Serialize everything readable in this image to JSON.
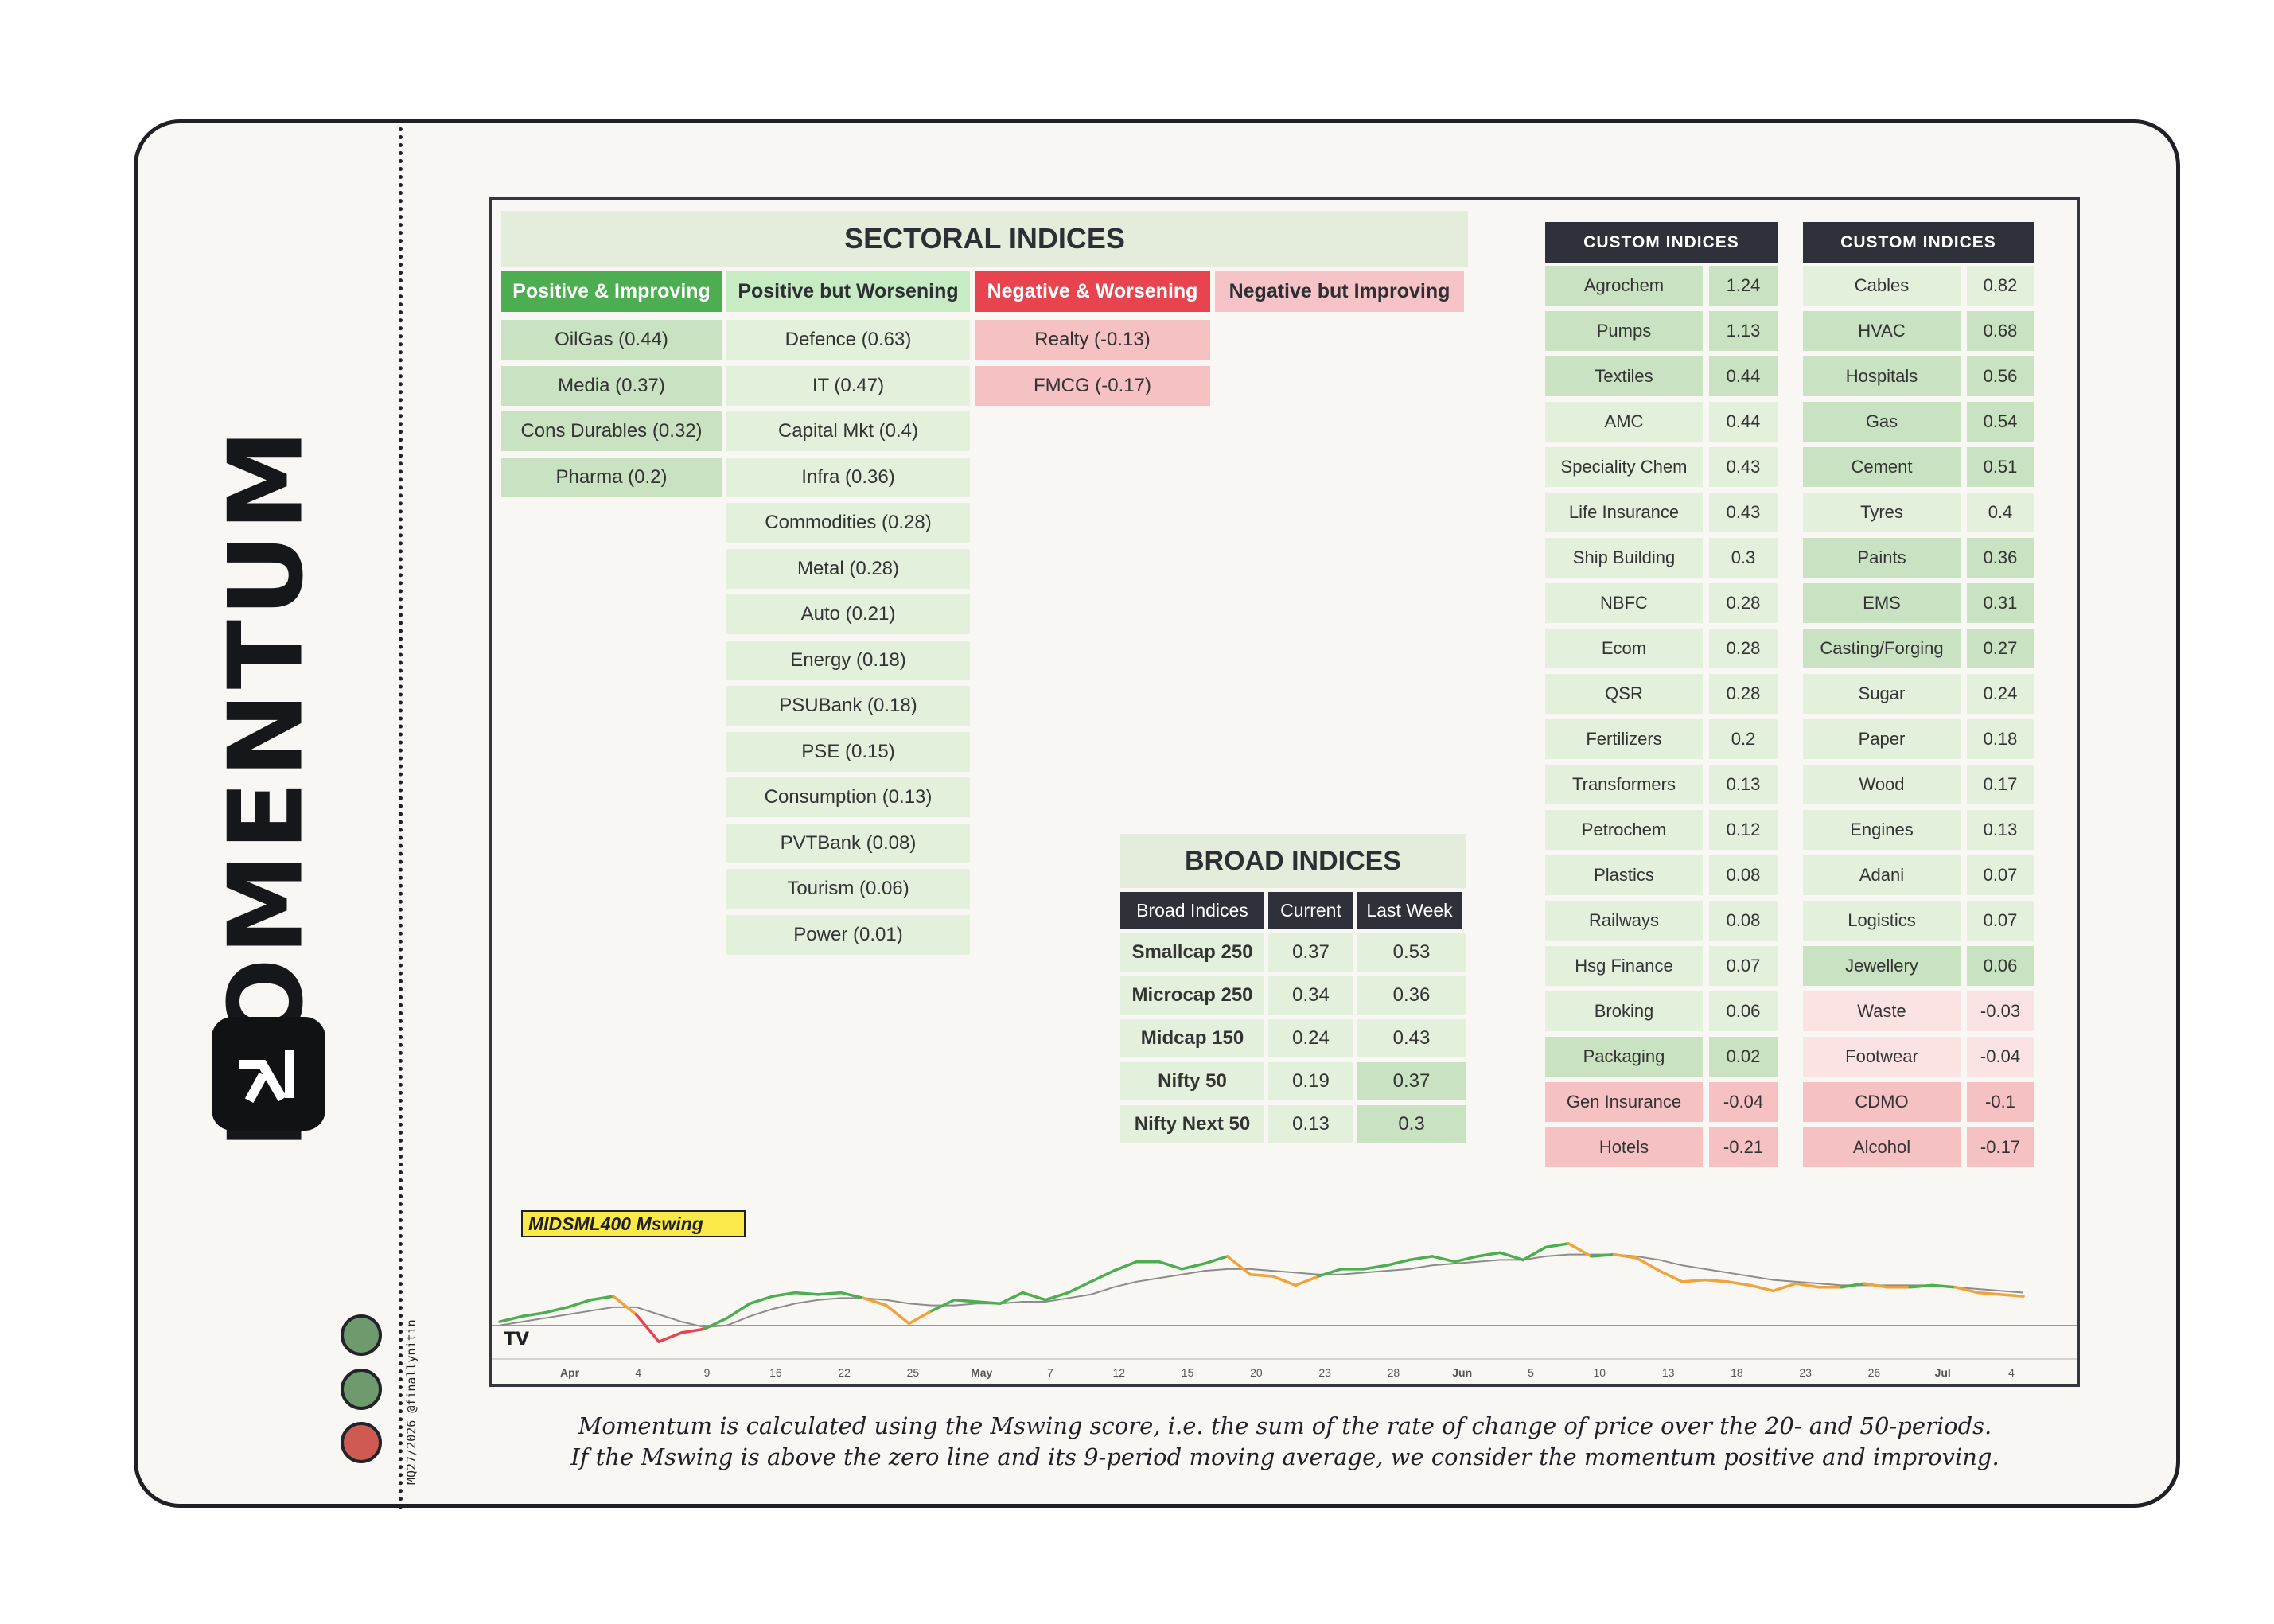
{
  "brand": {
    "title": "MOMENTUM",
    "handle": "MQ27/2026 @finallynitin"
  },
  "status_dots": [
    "#6e9a6e",
    "#6e9a6e",
    "#cf5a52"
  ],
  "colors": {
    "g1": "#c9e3c2",
    "g2": "#e3f0dc",
    "r1": "#f5c1c3",
    "r2": "#fbe3e3"
  },
  "sectoral": {
    "title": "SECTORAL INDICES",
    "columns": [
      {
        "label": "Positive & Improving",
        "head_bg": "#4cae50",
        "head_fg": "#ffffff",
        "cell_bg": "#c9e3c2",
        "items": [
          "OilGas (0.44)",
          "Media (0.37)",
          "Cons Durables (0.32)",
          "Pharma (0.2)"
        ]
      },
      {
        "label": "Positive but Worsening",
        "head_bg": "#c7ecc4",
        "head_fg": "#2d2f35",
        "cell_bg": "#e3f0dc",
        "items": [
          "Defence (0.63)",
          "IT (0.47)",
          "Capital Mkt (0.4)",
          "Infra (0.36)",
          "Commodities (0.28)",
          "Metal (0.28)",
          "Auto (0.21)",
          "Energy (0.18)",
          "PSUBank (0.18)",
          "PSE (0.15)",
          "Consumption (0.13)",
          "PVTBank (0.08)",
          "Tourism (0.06)",
          "Power (0.01)"
        ]
      },
      {
        "label": "Negative & Worsening",
        "head_bg": "#e8444f",
        "head_fg": "#ffffff",
        "cell_bg": "#f5c1c3",
        "items": [
          "Realty (-0.13)",
          "FMCG (-0.17)"
        ]
      },
      {
        "label": "Negative but Improving",
        "head_bg": "#f6c4c6",
        "head_fg": "#2d2f35",
        "cell_bg": "#fbe3e3",
        "items": []
      }
    ]
  },
  "custom_indices": [
    {
      "title": "CUSTOM INDICES",
      "rows": [
        {
          "name": "Agrochem",
          "value": "1.24",
          "tone": "g1"
        },
        {
          "name": "Pumps",
          "value": "1.13",
          "tone": "g1"
        },
        {
          "name": "Textiles",
          "value": "0.44",
          "tone": "g1"
        },
        {
          "name": "AMC",
          "value": "0.44",
          "tone": "g2"
        },
        {
          "name": "Speciality Chem",
          "value": "0.43",
          "tone": "g2"
        },
        {
          "name": "Life Insurance",
          "value": "0.43",
          "tone": "g2"
        },
        {
          "name": "Ship Building",
          "value": "0.3",
          "tone": "g2"
        },
        {
          "name": "NBFC",
          "value": "0.28",
          "tone": "g2"
        },
        {
          "name": "Ecom",
          "value": "0.28",
          "tone": "g2"
        },
        {
          "name": "QSR",
          "value": "0.28",
          "tone": "g2"
        },
        {
          "name": "Fertilizers",
          "value": "0.2",
          "tone": "g2"
        },
        {
          "name": "Transformers",
          "value": "0.13",
          "tone": "g2"
        },
        {
          "name": "Petrochem",
          "value": "0.12",
          "tone": "g2"
        },
        {
          "name": "Plastics",
          "value": "0.08",
          "tone": "g2"
        },
        {
          "name": "Railways",
          "value": "0.08",
          "tone": "g2"
        },
        {
          "name": "Hsg Finance",
          "value": "0.07",
          "tone": "g2"
        },
        {
          "name": "Broking",
          "value": "0.06",
          "tone": "g2"
        },
        {
          "name": "Packaging",
          "value": "0.02",
          "tone": "g1"
        },
        {
          "name": "Gen Insurance",
          "value": "-0.04",
          "tone": "r1"
        },
        {
          "name": "Hotels",
          "value": "-0.21",
          "tone": "r1"
        }
      ]
    },
    {
      "title": "CUSTOM INDICES",
      "rows": [
        {
          "name": "Cables",
          "value": "0.82",
          "tone": "g2"
        },
        {
          "name": "HVAC",
          "value": "0.68",
          "tone": "g1"
        },
        {
          "name": "Hospitals",
          "value": "0.56",
          "tone": "g1"
        },
        {
          "name": "Gas",
          "value": "0.54",
          "tone": "g1"
        },
        {
          "name": "Cement",
          "value": "0.51",
          "tone": "g1"
        },
        {
          "name": "Tyres",
          "value": "0.4",
          "tone": "g2"
        },
        {
          "name": "Paints",
          "value": "0.36",
          "tone": "g1"
        },
        {
          "name": "EMS",
          "value": "0.31",
          "tone": "g1"
        },
        {
          "name": "Casting/Forging",
          "value": "0.27",
          "tone": "g1"
        },
        {
          "name": "Sugar",
          "value": "0.24",
          "tone": "g2"
        },
        {
          "name": "Paper",
          "value": "0.18",
          "tone": "g2"
        },
        {
          "name": "Wood",
          "value": "0.17",
          "tone": "g2"
        },
        {
          "name": "Engines",
          "value": "0.13",
          "tone": "g2"
        },
        {
          "name": "Adani",
          "value": "0.07",
          "tone": "g2"
        },
        {
          "name": "Logistics",
          "value": "0.07",
          "tone": "g2"
        },
        {
          "name": "Jewellery",
          "value": "0.06",
          "tone": "g1"
        },
        {
          "name": "Waste",
          "value": "-0.03",
          "tone": "r2"
        },
        {
          "name": "Footwear",
          "value": "-0.04",
          "tone": "r2"
        },
        {
          "name": "CDMO",
          "value": "-0.1",
          "tone": "r1"
        },
        {
          "name": "Alcohol",
          "value": "-0.17",
          "tone": "r1"
        }
      ]
    }
  ],
  "broad": {
    "title": "BROAD INDICES",
    "headers": [
      "Broad Indices",
      "Current",
      "Last Week"
    ],
    "rows": [
      {
        "name": "Smallcap 250",
        "current": "0.37",
        "last_week": "0.53",
        "tone": "g2"
      },
      {
        "name": "Microcap 250",
        "current": "0.34",
        "last_week": "0.36",
        "tone": "g2"
      },
      {
        "name": "Midcap 150",
        "current": "0.24",
        "last_week": "0.43",
        "tone": "g2"
      },
      {
        "name": "Nifty 50",
        "current": "0.19",
        "last_week": "0.37",
        "tone": "g1"
      },
      {
        "name": "Nifty Next 50",
        "current": "0.13",
        "last_week": "0.3",
        "tone": "g1"
      }
    ]
  },
  "chart_data": {
    "type": "line",
    "title": "MIDSML400 Mswing",
    "xlabel": "",
    "ylabel": "",
    "x_ticks": [
      "Apr",
      "4",
      "9",
      "16",
      "22",
      "25",
      "May",
      "7",
      "12",
      "15",
      "20",
      "23",
      "28",
      "Jun",
      "5",
      "10",
      "13",
      "18",
      "23",
      "26",
      "Jul",
      "4"
    ],
    "ylim": [
      -0.15,
      0.55
    ],
    "series": [
      {
        "name": "Mswing",
        "colors": {
          "positive_improving": "#4cae50",
          "positive_worsening": "#f2a23a",
          "negative": "#e8444f"
        },
        "values": [
          0.02,
          0.05,
          0.07,
          0.1,
          0.14,
          0.16,
          0.06,
          -0.09,
          -0.04,
          -0.02,
          0.04,
          0.12,
          0.16,
          0.18,
          0.17,
          0.18,
          0.15,
          0.11,
          0.01,
          0.08,
          0.14,
          0.13,
          0.12,
          0.18,
          0.14,
          0.18,
          0.24,
          0.3,
          0.35,
          0.35,
          0.31,
          0.34,
          0.38,
          0.28,
          0.27,
          0.22,
          0.27,
          0.31,
          0.31,
          0.33,
          0.36,
          0.38,
          0.35,
          0.38,
          0.4,
          0.36,
          0.43,
          0.45,
          0.38,
          0.39,
          0.37,
          0.3,
          0.24,
          0.25,
          0.24,
          0.22,
          0.19,
          0.23,
          0.21,
          0.21,
          0.23,
          0.21,
          0.21,
          0.22,
          0.21,
          0.18,
          0.17,
          0.16
        ]
      },
      {
        "name": "9-period MA",
        "color": "#8c8c8c",
        "values": [
          0.0,
          0.02,
          0.04,
          0.06,
          0.08,
          0.1,
          0.1,
          0.06,
          0.02,
          -0.01,
          0.0,
          0.05,
          0.09,
          0.12,
          0.14,
          0.15,
          0.15,
          0.14,
          0.12,
          0.11,
          0.11,
          0.12,
          0.12,
          0.13,
          0.13,
          0.15,
          0.17,
          0.21,
          0.24,
          0.26,
          0.28,
          0.3,
          0.31,
          0.31,
          0.3,
          0.29,
          0.28,
          0.28,
          0.29,
          0.3,
          0.31,
          0.33,
          0.34,
          0.35,
          0.36,
          0.36,
          0.38,
          0.39,
          0.39,
          0.39,
          0.38,
          0.36,
          0.33,
          0.31,
          0.29,
          0.27,
          0.25,
          0.24,
          0.23,
          0.22,
          0.22,
          0.22,
          0.22,
          0.22,
          0.21,
          0.2,
          0.19,
          0.18
        ]
      }
    ],
    "zero_line": 0,
    "watermark": "TV"
  },
  "caption": [
    "Momentum is calculated using the Mswing score, i.e. the sum of the rate of change of price over the 20- and 50-periods.",
    "If the Mswing is above the zero line and its 9-period moving average, we consider the momentum positive and improving."
  ]
}
